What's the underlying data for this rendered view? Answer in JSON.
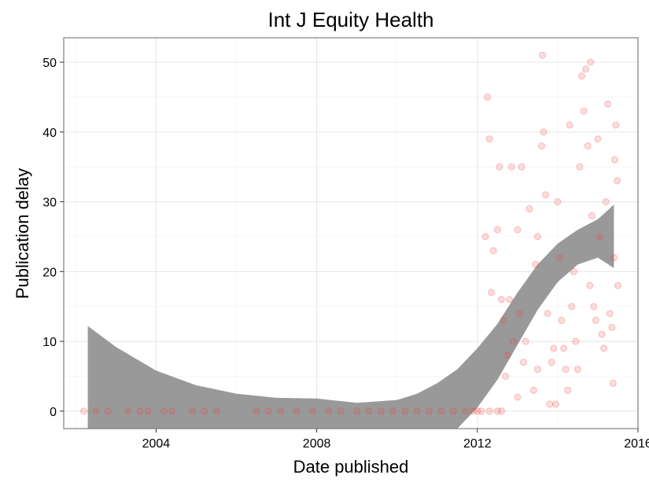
{
  "chart_data": {
    "type": "scatter",
    "title": "Int J Equity Health",
    "xlabel": "Date published",
    "ylabel": "Publication delay",
    "xlim": [
      2001.7,
      2016.0
    ],
    "ylim": [
      -2.5,
      53.5
    ],
    "x_ticks": [
      2004,
      2008,
      2012,
      2016
    ],
    "x_tick_labels": [
      "2004",
      "2008",
      "2012",
      "2016"
    ],
    "y_ticks": [
      0,
      10,
      20,
      30,
      40,
      50
    ],
    "y_tick_labels": [
      "0",
      "10",
      "20",
      "30",
      "40",
      "50"
    ],
    "grid": true,
    "point_color": "#f04040",
    "band_color": "#999999",
    "smooth_band": {
      "x": [
        2002.3,
        2003,
        2004,
        2005,
        2006,
        2007,
        2008,
        2009,
        2010,
        2010.5,
        2011,
        2011.5,
        2012,
        2012.5,
        2013,
        2013.5,
        2014,
        2014.5,
        2015,
        2015.4
      ],
      "upper": [
        12.2,
        9.2,
        5.8,
        3.7,
        2.5,
        1.9,
        1.8,
        1.2,
        1.6,
        2.5,
        4.0,
        6.0,
        9.0,
        12.5,
        17.0,
        21.0,
        24.0,
        26.0,
        27.5,
        29.6
      ],
      "lower": [
        -2.5,
        -2.5,
        -2.5,
        -2.5,
        -2.5,
        -2.5,
        -2.5,
        -2.5,
        -2.5,
        -2.5,
        -2.5,
        -2.5,
        0.5,
        4.5,
        9.5,
        14.5,
        18.5,
        21.0,
        22.0,
        20.5
      ]
    },
    "points": [
      {
        "x": 2002.2,
        "y": 0
      },
      {
        "x": 2002.5,
        "y": 0
      },
      {
        "x": 2002.8,
        "y": 0
      },
      {
        "x": 2003.3,
        "y": 0
      },
      {
        "x": 2003.6,
        "y": 0
      },
      {
        "x": 2003.8,
        "y": 0
      },
      {
        "x": 2004.2,
        "y": 0
      },
      {
        "x": 2004.4,
        "y": 0
      },
      {
        "x": 2004.9,
        "y": 0
      },
      {
        "x": 2005.2,
        "y": 0
      },
      {
        "x": 2005.5,
        "y": 0
      },
      {
        "x": 2006.5,
        "y": 0
      },
      {
        "x": 2006.8,
        "y": 0
      },
      {
        "x": 2007.1,
        "y": 0
      },
      {
        "x": 2007.5,
        "y": 0
      },
      {
        "x": 2007.9,
        "y": 0
      },
      {
        "x": 2008.3,
        "y": 0
      },
      {
        "x": 2008.6,
        "y": 0
      },
      {
        "x": 2009.0,
        "y": 0
      },
      {
        "x": 2009.3,
        "y": 0
      },
      {
        "x": 2009.6,
        "y": 0
      },
      {
        "x": 2009.9,
        "y": 0
      },
      {
        "x": 2010.2,
        "y": 0
      },
      {
        "x": 2010.5,
        "y": 0
      },
      {
        "x": 2010.8,
        "y": 0
      },
      {
        "x": 2011.1,
        "y": 0
      },
      {
        "x": 2011.4,
        "y": 0
      },
      {
        "x": 2011.7,
        "y": 0
      },
      {
        "x": 2011.9,
        "y": 0
      },
      {
        "x": 2012.0,
        "y": 0
      },
      {
        "x": 2012.1,
        "y": 0
      },
      {
        "x": 2012.3,
        "y": 0
      },
      {
        "x": 2012.5,
        "y": 0
      },
      {
        "x": 2012.6,
        "y": 0
      },
      {
        "x": 2012.2,
        "y": 25
      },
      {
        "x": 2012.25,
        "y": 45
      },
      {
        "x": 2012.3,
        "y": 39
      },
      {
        "x": 2012.35,
        "y": 17
      },
      {
        "x": 2012.4,
        "y": 23
      },
      {
        "x": 2012.5,
        "y": 26
      },
      {
        "x": 2012.55,
        "y": 35
      },
      {
        "x": 2012.6,
        "y": 16
      },
      {
        "x": 2012.65,
        "y": 13
      },
      {
        "x": 2012.7,
        "y": 5
      },
      {
        "x": 2012.75,
        "y": 8
      },
      {
        "x": 2012.8,
        "y": 16
      },
      {
        "x": 2012.85,
        "y": 35
      },
      {
        "x": 2012.9,
        "y": 10
      },
      {
        "x": 2013.0,
        "y": 2
      },
      {
        "x": 2013.0,
        "y": 26
      },
      {
        "x": 2013.05,
        "y": 14
      },
      {
        "x": 2013.1,
        "y": 35
      },
      {
        "x": 2013.15,
        "y": 7
      },
      {
        "x": 2013.2,
        "y": 10
      },
      {
        "x": 2013.3,
        "y": 29
      },
      {
        "x": 2013.4,
        "y": 3
      },
      {
        "x": 2013.45,
        "y": 21
      },
      {
        "x": 2013.5,
        "y": 6
      },
      {
        "x": 2013.5,
        "y": 25
      },
      {
        "x": 2013.6,
        "y": 38
      },
      {
        "x": 2013.62,
        "y": 51
      },
      {
        "x": 2013.65,
        "y": 40
      },
      {
        "x": 2013.7,
        "y": 31
      },
      {
        "x": 2013.75,
        "y": 14
      },
      {
        "x": 2013.8,
        "y": 1
      },
      {
        "x": 2013.85,
        "y": 7
      },
      {
        "x": 2013.9,
        "y": 9
      },
      {
        "x": 2013.95,
        "y": 1
      },
      {
        "x": 2014.0,
        "y": 30
      },
      {
        "x": 2014.05,
        "y": 22
      },
      {
        "x": 2014.1,
        "y": 13
      },
      {
        "x": 2014.15,
        "y": 9
      },
      {
        "x": 2014.2,
        "y": 6
      },
      {
        "x": 2014.25,
        "y": 3
      },
      {
        "x": 2014.3,
        "y": 41
      },
      {
        "x": 2014.35,
        "y": 15
      },
      {
        "x": 2014.4,
        "y": 20
      },
      {
        "x": 2014.45,
        "y": 10
      },
      {
        "x": 2014.5,
        "y": 6
      },
      {
        "x": 2014.55,
        "y": 35
      },
      {
        "x": 2014.6,
        "y": 48
      },
      {
        "x": 2014.65,
        "y": 43
      },
      {
        "x": 2014.7,
        "y": 49
      },
      {
        "x": 2014.75,
        "y": 38
      },
      {
        "x": 2014.8,
        "y": 18
      },
      {
        "x": 2014.82,
        "y": 50
      },
      {
        "x": 2014.85,
        "y": 28
      },
      {
        "x": 2014.9,
        "y": 15
      },
      {
        "x": 2014.95,
        "y": 13
      },
      {
        "x": 2015.0,
        "y": 39
      },
      {
        "x": 2015.05,
        "y": 25
      },
      {
        "x": 2015.1,
        "y": 11
      },
      {
        "x": 2015.15,
        "y": 9
      },
      {
        "x": 2015.2,
        "y": 30
      },
      {
        "x": 2015.25,
        "y": 44
      },
      {
        "x": 2015.3,
        "y": 14
      },
      {
        "x": 2015.35,
        "y": 12
      },
      {
        "x": 2015.4,
        "y": 22
      },
      {
        "x": 2015.42,
        "y": 36
      },
      {
        "x": 2015.45,
        "y": 41
      },
      {
        "x": 2015.48,
        "y": 33
      },
      {
        "x": 2015.5,
        "y": 18
      },
      {
        "x": 2015.38,
        "y": 4
      }
    ]
  }
}
